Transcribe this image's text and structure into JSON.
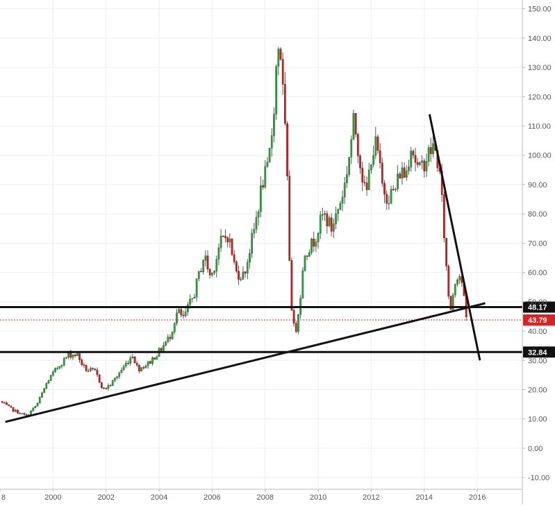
{
  "chart_data": {
    "type": "candlestick",
    "title": "",
    "xlabel": "",
    "ylabel": "",
    "interval": "monthly",
    "x_range": [
      1998.0,
      2017.7
    ],
    "ylim": [
      -14,
      153
    ],
    "y_ticks": [
      "150.00",
      "140.00",
      "130.00",
      "120.00",
      "110.00",
      "100.00",
      "90.00",
      "80.00",
      "70.00",
      "60.00",
      "50.00",
      "40.00",
      "30.00",
      "20.00",
      "10.00",
      "0.00",
      "-10.00"
    ],
    "x_ticks": [
      "8",
      "2000",
      "2002",
      "2004",
      "2006",
      "2008",
      "2010",
      "2012",
      "2014",
      "2016"
    ],
    "grid": true,
    "colors": {
      "up": "#2e9e3e",
      "down": "#c8201f",
      "wick": "#555555",
      "grid": "#eeeeee",
      "axis": "#b8b8b8",
      "current": "#e02020",
      "level": "#111111"
    },
    "anchors": [
      [
        1998.0,
        16
      ],
      [
        1998.5,
        13
      ],
      [
        1999.0,
        11
      ],
      [
        1999.4,
        15
      ],
      [
        1999.8,
        23
      ],
      [
        2000.2,
        28
      ],
      [
        2000.6,
        32
      ],
      [
        2000.9,
        32
      ],
      [
        2001.2,
        27
      ],
      [
        2001.6,
        26
      ],
      [
        2001.9,
        20
      ],
      [
        2002.2,
        22
      ],
      [
        2002.6,
        27
      ],
      [
        2003.0,
        32
      ],
      [
        2003.2,
        27
      ],
      [
        2003.6,
        29
      ],
      [
        2004.0,
        33
      ],
      [
        2004.4,
        38
      ],
      [
        2004.7,
        47
      ],
      [
        2004.9,
        44
      ],
      [
        2005.3,
        52
      ],
      [
        2005.7,
        66
      ],
      [
        2005.95,
        58
      ],
      [
        2006.3,
        70
      ],
      [
        2006.6,
        73
      ],
      [
        2006.9,
        60
      ],
      [
        2007.2,
        59
      ],
      [
        2007.6,
        75
      ],
      [
        2007.9,
        91
      ],
      [
        2008.1,
        95
      ],
      [
        2008.3,
        112
      ],
      [
        2008.45,
        135
      ],
      [
        2008.55,
        140
      ],
      [
        2008.7,
        116
      ],
      [
        2008.8,
        100
      ],
      [
        2008.9,
        70
      ],
      [
        2008.95,
        55
      ],
      [
        2009.05,
        42
      ],
      [
        2009.15,
        40
      ],
      [
        2009.3,
        50
      ],
      [
        2009.5,
        67
      ],
      [
        2009.8,
        70
      ],
      [
        2010.2,
        80
      ],
      [
        2010.5,
        75
      ],
      [
        2010.8,
        83
      ],
      [
        2011.0,
        90
      ],
      [
        2011.2,
        102
      ],
      [
        2011.35,
        112
      ],
      [
        2011.6,
        97
      ],
      [
        2011.8,
        85
      ],
      [
        2012.0,
        100
      ],
      [
        2012.2,
        104
      ],
      [
        2012.4,
        90
      ],
      [
        2012.6,
        86
      ],
      [
        2012.9,
        88
      ],
      [
        2013.1,
        95
      ],
      [
        2013.3,
        93
      ],
      [
        2013.5,
        104
      ],
      [
        2013.8,
        94
      ],
      [
        2014.0,
        98
      ],
      [
        2014.2,
        101
      ],
      [
        2014.35,
        103
      ],
      [
        2014.5,
        98
      ],
      [
        2014.6,
        92
      ],
      [
        2014.7,
        80
      ],
      [
        2014.8,
        66
      ],
      [
        2014.9,
        53
      ],
      [
        2015.0,
        48
      ],
      [
        2015.15,
        57
      ],
      [
        2015.3,
        60
      ],
      [
        2015.45,
        56
      ],
      [
        2015.55,
        45
      ],
      [
        2015.65,
        44
      ]
    ],
    "levels": [
      {
        "value": 48.17,
        "label": "48.17"
      },
      {
        "value": 32.84,
        "label": "32.84"
      }
    ],
    "current_price": {
      "value": 43.79,
      "label": "43.79"
    },
    "trendlines": [
      {
        "from": [
          1998.2,
          9
        ],
        "to": [
          2016.3,
          49.5
        ]
      },
      {
        "from": [
          2014.2,
          114
        ],
        "to": [
          2016.1,
          30
        ]
      }
    ]
  }
}
